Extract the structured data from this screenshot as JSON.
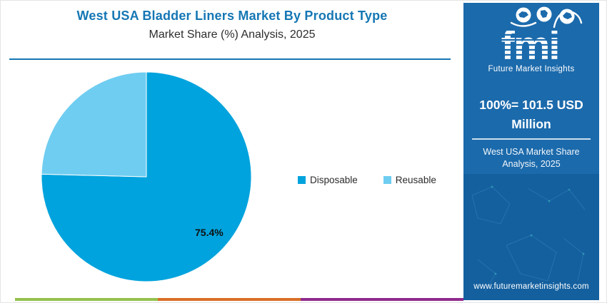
{
  "header": {
    "title": "West USA Bladder Liners Market By Product Type",
    "subtitle": "Market Share (%) Analysis, 2025"
  },
  "chart_data": {
    "type": "pie",
    "title": "West USA Bladder Liners Market By Product Type",
    "subtitle": "Market Share (%) Analysis, 2025",
    "labels": [
      "Disposable",
      "Reusable"
    ],
    "values": [
      75.4,
      24.6
    ],
    "colors": [
      "#00a3dd",
      "#6fcdf1"
    ],
    "data_labels": [
      "75.4%",
      ""
    ],
    "start_angle_deg": 0,
    "direction": "clockwise",
    "legend_position": "right-of-center",
    "grid": false
  },
  "sidebar": {
    "logo": {
      "brand": "fmi",
      "tagline": "Future Market Insights",
      "icons": [
        "americas-map-icon",
        "europe-africa-map-icon",
        "asia-pacific-map-icon"
      ]
    },
    "headline": "100%= 101.5 USD Million",
    "subheadline": "West USA Market Share Analysis, 2025",
    "website": "www.futuremarketinsights.com",
    "background_color": "#1b6aac",
    "accent_line_color": "#cfe0ee"
  },
  "footer_strip_colors": [
    "#94c14c",
    "#d96f26",
    "#8f2a8d"
  ],
  "theme": {
    "title_color": "#1577b4",
    "divider_color": "#1577b4",
    "text_color": "#2d2d2d"
  }
}
